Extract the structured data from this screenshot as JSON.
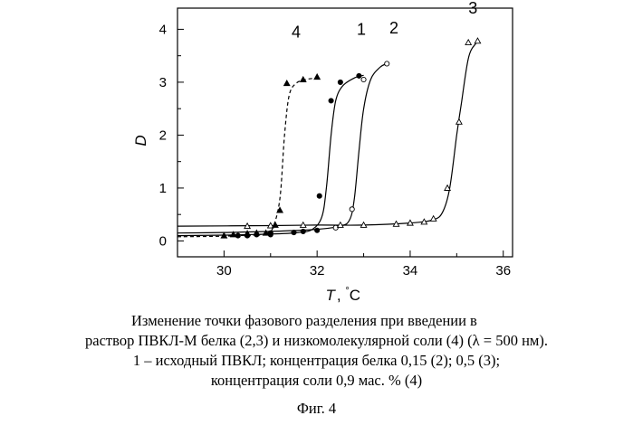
{
  "chart_data": {
    "type": "line",
    "xlabel": "T",
    "xunit": "°C",
    "ylabel": "D",
    "xlim": [
      29,
      36.2
    ],
    "ylim": [
      -0.3,
      4.4
    ],
    "xticks": [
      30,
      32,
      34,
      36
    ],
    "yticks": [
      0,
      1,
      2,
      3,
      4
    ],
    "grid": false,
    "series": [
      {
        "name": "1",
        "style": "solid",
        "marker": "filled-circle",
        "fit": [
          [
            29,
            0.1
          ],
          [
            30,
            0.11
          ],
          [
            31,
            0.13
          ],
          [
            31.6,
            0.16
          ],
          [
            31.9,
            0.22
          ],
          [
            32.1,
            0.45
          ],
          [
            32.2,
            1.0
          ],
          [
            32.3,
            2.0
          ],
          [
            32.4,
            2.65
          ],
          [
            32.55,
            2.93
          ],
          [
            32.8,
            3.08
          ],
          [
            33,
            3.13
          ]
        ],
        "points": [
          [
            30.3,
            0.1
          ],
          [
            30.5,
            0.1
          ],
          [
            30.7,
            0.12
          ],
          [
            31,
            0.12
          ],
          [
            31.0,
            0.15
          ],
          [
            31.5,
            0.16
          ],
          [
            31.7,
            0.18
          ],
          [
            32.0,
            0.2
          ],
          [
            32.05,
            0.85
          ],
          [
            32.3,
            2.65
          ],
          [
            32.5,
            3.0
          ],
          [
            32.9,
            3.12
          ]
        ]
      },
      {
        "name": "2",
        "style": "solid",
        "marker": "open-circle",
        "fit": [
          [
            29,
            0.15
          ],
          [
            30,
            0.16
          ],
          [
            31,
            0.18
          ],
          [
            32,
            0.22
          ],
          [
            32.5,
            0.28
          ],
          [
            32.7,
            0.4
          ],
          [
            32.8,
            0.8
          ],
          [
            32.9,
            1.7
          ],
          [
            33.0,
            2.5
          ],
          [
            33.15,
            3.05
          ],
          [
            33.35,
            3.28
          ],
          [
            33.5,
            3.35
          ]
        ],
        "points": [
          [
            32.4,
            0.25
          ],
          [
            32.75,
            0.6
          ],
          [
            33.0,
            3.05
          ],
          [
            33.5,
            3.35
          ]
        ]
      },
      {
        "name": "3",
        "style": "solid",
        "marker": "open-triangle",
        "fit": [
          [
            29,
            0.28
          ],
          [
            31,
            0.29
          ],
          [
            32,
            0.3
          ],
          [
            33,
            0.3
          ],
          [
            34,
            0.34
          ],
          [
            34.5,
            0.4
          ],
          [
            34.7,
            0.55
          ],
          [
            34.85,
            1.0
          ],
          [
            35.0,
            2.0
          ],
          [
            35.1,
            2.6
          ],
          [
            35.25,
            3.45
          ],
          [
            35.4,
            3.72
          ],
          [
            35.5,
            3.75
          ]
        ],
        "points": [
          [
            30.5,
            0.28
          ],
          [
            31,
            0.29
          ],
          [
            31.7,
            0.3
          ],
          [
            32.5,
            0.3
          ],
          [
            33.0,
            0.3
          ],
          [
            33.7,
            0.32
          ],
          [
            34.0,
            0.34
          ],
          [
            34.3,
            0.36
          ],
          [
            34.5,
            0.42
          ],
          [
            34.8,
            1.0
          ],
          [
            35.05,
            2.25
          ],
          [
            35.25,
            3.75
          ],
          [
            35.45,
            3.78
          ]
        ]
      },
      {
        "name": "4",
        "style": "dashed",
        "marker": "filled-triangle",
        "fit": [
          [
            29,
            0.08
          ],
          [
            30,
            0.09
          ],
          [
            30.5,
            0.11
          ],
          [
            30.9,
            0.14
          ],
          [
            31.05,
            0.25
          ],
          [
            31.2,
            0.8
          ],
          [
            31.3,
            2.0
          ],
          [
            31.4,
            2.75
          ],
          [
            31.55,
            2.98
          ],
          [
            31.75,
            3.05
          ],
          [
            32.0,
            3.08
          ]
        ],
        "points": [
          [
            30.0,
            0.1
          ],
          [
            30.2,
            0.12
          ],
          [
            30.5,
            0.14
          ],
          [
            30.7,
            0.15
          ],
          [
            30.9,
            0.15
          ],
          [
            31.1,
            0.3
          ],
          [
            31.2,
            0.58
          ],
          [
            31.35,
            2.98
          ],
          [
            31.7,
            3.05
          ],
          [
            32.0,
            3.1
          ]
        ]
      }
    ]
  },
  "caption": {
    "line1": "Изменение точки фазового разделения при введении в",
    "line2": "раствор ПВКЛ-М белка (2,3) и низкомолекулярной соли (4) (λ = 500 нм).",
    "line3": "1 – исходный ПВКЛ; концентрация белка 0,15 (2); 0,5 (3);",
    "line4": "концентрация соли 0,9 мас. % (4)"
  },
  "figure_label": "Фиг. 4"
}
